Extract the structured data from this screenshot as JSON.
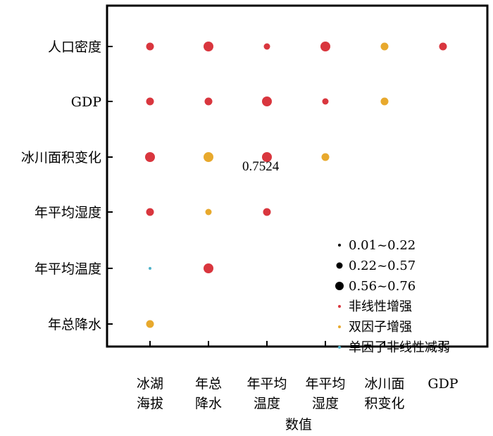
{
  "chart_data": {
    "type": "scatter",
    "xlabel": "数值",
    "ylabel": "",
    "title": "",
    "x_categories": [
      [
        "冰湖",
        "海拔"
      ],
      [
        "年总",
        "降水"
      ],
      [
        "年平均",
        "温度"
      ],
      [
        "年平均",
        "湿度"
      ],
      [
        "冰川面",
        "积变化"
      ],
      [
        "GDP"
      ]
    ],
    "y_categories": [
      "人口密度",
      "GDP",
      "冰川面积变化",
      "年平均湿度",
      "年平均温度",
      "年总降水"
    ],
    "size_legend": [
      {
        "label": "0.01~0.22",
        "size": "small"
      },
      {
        "label": "0.22~0.57",
        "size": "medium"
      },
      {
        "label": "0.56~0.76",
        "size": "large"
      }
    ],
    "type_legend": [
      {
        "label": "非线性增强",
        "color": "#d9363e"
      },
      {
        "label": "双因子增强",
        "color": "#e8a92d"
      },
      {
        "label": "单因子非线性减弱",
        "color": "#4fb3c9"
      }
    ],
    "annotation": "0.7524",
    "points": [
      {
        "x": 0,
        "y": 0,
        "size": "medium",
        "type": 0
      },
      {
        "x": 1,
        "y": 0,
        "size": "large",
        "type": 0
      },
      {
        "x": 2,
        "y": 0,
        "size": "small",
        "type": 0
      },
      {
        "x": 3,
        "y": 0,
        "size": "large",
        "type": 0
      },
      {
        "x": 4,
        "y": 0,
        "size": "medium",
        "type": 1
      },
      {
        "x": 5,
        "y": 0,
        "size": "medium",
        "type": 0
      },
      {
        "x": 0,
        "y": 1,
        "size": "medium",
        "type": 0
      },
      {
        "x": 1,
        "y": 1,
        "size": "medium",
        "type": 0
      },
      {
        "x": 2,
        "y": 1,
        "size": "large",
        "type": 0
      },
      {
        "x": 3,
        "y": 1,
        "size": "small",
        "type": 0
      },
      {
        "x": 4,
        "y": 1,
        "size": "medium",
        "type": 1
      },
      {
        "x": 0,
        "y": 2,
        "size": "large",
        "type": 0
      },
      {
        "x": 1,
        "y": 2,
        "size": "large",
        "type": 1
      },
      {
        "x": 2,
        "y": 2,
        "size": "large",
        "type": 0
      },
      {
        "x": 3,
        "y": 2,
        "size": "medium",
        "type": 1
      },
      {
        "x": 0,
        "y": 3,
        "size": "medium",
        "type": 0
      },
      {
        "x": 1,
        "y": 3,
        "size": "small",
        "type": 1
      },
      {
        "x": 2,
        "y": 3,
        "size": "medium",
        "type": 0
      },
      {
        "x": 0,
        "y": 4,
        "size": "tiny",
        "type": 2
      },
      {
        "x": 1,
        "y": 4,
        "size": "large",
        "type": 0
      },
      {
        "x": 0,
        "y": 5,
        "size": "medium",
        "type": 1
      }
    ]
  }
}
